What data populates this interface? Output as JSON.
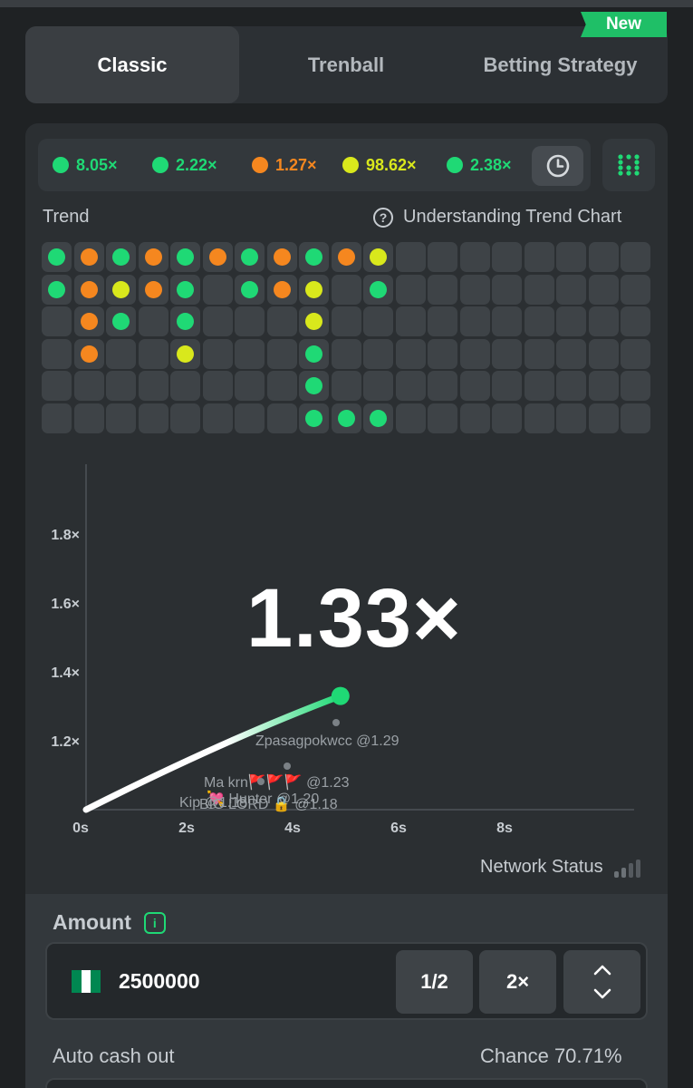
{
  "tabs": [
    {
      "label": "Classic",
      "active": true
    },
    {
      "label": "Trenball",
      "active": false
    },
    {
      "label": "Betting Strategy",
      "active": false
    }
  ],
  "new_badge": "New",
  "history": [
    {
      "value": "8.05×",
      "color": "#1fd975"
    },
    {
      "value": "2.22×",
      "color": "#1fd975"
    },
    {
      "value": "1.27×",
      "color": "#f5871f"
    },
    {
      "value": "98.62×",
      "color": "#d9e81c"
    },
    {
      "value": "2.38×",
      "color": "#1fd975"
    }
  ],
  "icons": {
    "history": "clock-icon",
    "trend_toggle": "dot-grid-icon",
    "help": "question-circle-icon",
    "info": "info-icon"
  },
  "trend": {
    "label": "Trend",
    "help_label": "Understanding Trend Chart",
    "columns": [
      [
        "g",
        "g",
        null,
        null,
        null,
        null
      ],
      [
        "o",
        "o",
        "o",
        "o",
        null,
        null
      ],
      [
        "g",
        "y",
        "g",
        null,
        null,
        null
      ],
      [
        "o",
        "o",
        null,
        null,
        null,
        null
      ],
      [
        "g",
        "g",
        "g",
        "y",
        null,
        null
      ],
      [
        "o",
        null,
        null,
        null,
        null,
        null
      ],
      [
        "g",
        "g",
        null,
        null,
        null,
        null
      ],
      [
        "o",
        "o",
        null,
        null,
        null,
        null
      ],
      [
        "g",
        "y",
        "y",
        "g",
        "g",
        "g"
      ],
      [
        "o",
        null,
        null,
        null,
        null,
        "g"
      ],
      [
        "y",
        "g",
        null,
        null,
        null,
        "g"
      ],
      [
        null,
        null,
        null,
        null,
        null,
        null
      ],
      [
        null,
        null,
        null,
        null,
        null,
        null
      ],
      [
        null,
        null,
        null,
        null,
        null,
        null
      ],
      [
        null,
        null,
        null,
        null,
        null,
        null
      ],
      [
        null,
        null,
        null,
        null,
        null,
        null
      ],
      [
        null,
        null,
        null,
        null,
        null,
        null
      ],
      [
        null,
        null,
        null,
        null,
        null,
        null
      ],
      [
        null,
        null,
        null,
        null,
        null,
        null
      ]
    ],
    "colors": {
      "g": "#1fd975",
      "o": "#f5871f",
      "y": "#d9e81c"
    }
  },
  "chart_data": {
    "type": "line",
    "y_ticks": [
      "1.8×",
      "1.6×",
      "1.4×",
      "1.2×"
    ],
    "x_ticks": [
      "0s",
      "2s",
      "4s",
      "6s",
      "8s"
    ],
    "current_multiplier": "1.33×",
    "curve_points": [
      [
        0,
        1.0
      ],
      [
        4.8,
        1.33
      ]
    ],
    "cashouts": [
      {
        "name": "Zpasagpokwcc",
        "at": "@1.29",
        "t": 4.8,
        "y": 1.29
      },
      {
        "name": "Ma krn🚩🚩🚩",
        "at": "@1.23",
        "t": 3.3,
        "y": 1.23
      },
      {
        "name": "💘 Hunter",
        "at": "@1.20",
        "t": 3.9,
        "y": 1.2
      },
      {
        "name": "Kip",
        "at": "@1.18",
        "t": 2.0,
        "y": 1.18
      },
      {
        "name": "BIG LORD 🔒",
        "at": "@1.18",
        "t": 3.0,
        "y": 1.18
      }
    ]
  },
  "network_status": "Network Status",
  "amount": {
    "label": "Amount",
    "value": "2500000",
    "half_label": "1/2",
    "double_label": "2×",
    "flag_colors": [
      "#008751",
      "#ffffff",
      "#008751"
    ]
  },
  "auto_cash_out": {
    "label": "Auto cash out"
  },
  "chance": "Chance 70.71%",
  "colors": {
    "accent_green": "#1fd975",
    "orange": "#f5871f",
    "yellow": "#d9e81c"
  }
}
